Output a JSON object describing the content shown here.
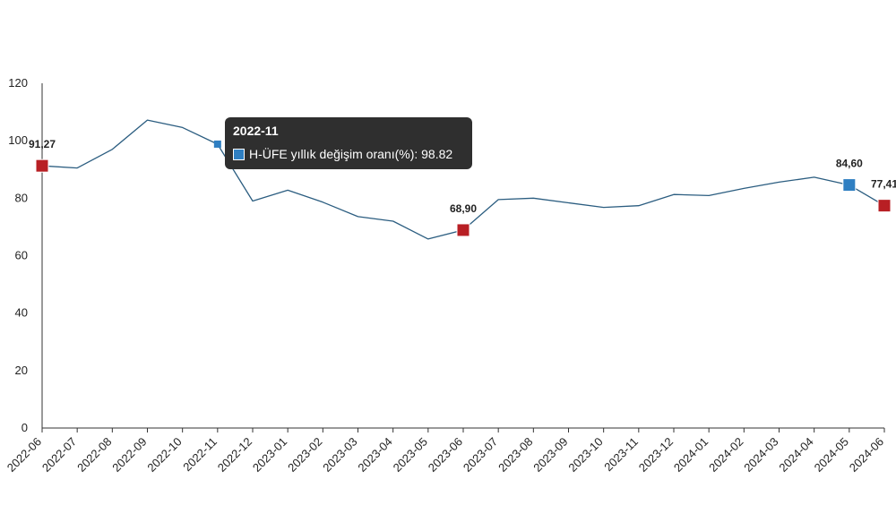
{
  "chart_data": {
    "type": "line",
    "title": "",
    "xlabel": "",
    "ylabel": "",
    "ylim": [
      0,
      120
    ],
    "yticks": [
      0,
      20,
      40,
      60,
      80,
      100,
      120
    ],
    "grid": false,
    "categories": [
      "2022-06",
      "2022-07",
      "2022-08",
      "2022-09",
      "2022-10",
      "2022-11",
      "2022-12",
      "2023-01",
      "2023-02",
      "2023-03",
      "2023-04",
      "2023-05",
      "2023-06",
      "2023-07",
      "2023-08",
      "2023-09",
      "2023-10",
      "2023-11",
      "2023-12",
      "2024-01",
      "2024-02",
      "2024-03",
      "2024-04",
      "2024-05",
      "2024-06"
    ],
    "series": [
      {
        "name": "H-ÜFE yıllık değişim oranı(%)",
        "color": "#2b5d80",
        "values": [
          91.27,
          90.5,
          97.0,
          107.2,
          104.6,
          98.82,
          79.0,
          82.8,
          78.6,
          73.6,
          72.0,
          65.8,
          68.9,
          79.5,
          80.0,
          78.4,
          76.8,
          77.4,
          81.3,
          80.9,
          83.4,
          85.6,
          87.3,
          84.6,
          77.41
        ]
      }
    ],
    "highlighted_points": [
      {
        "category": "2022-06",
        "label": "91,27",
        "color": "#b81f24"
      },
      {
        "category": "2023-06",
        "label": "68,90",
        "color": "#b81f24"
      },
      {
        "category": "2024-05",
        "label": "84,60",
        "color": "#2f7fc2"
      },
      {
        "category": "2024-06",
        "label": "77,41",
        "color": "#b81f24"
      }
    ],
    "tooltip": {
      "title": "2022-11",
      "series_label": "H-ÜFE yıllık değişim oranı(%)",
      "value": "98.82",
      "text": "H-ÜFE yıllık değişim oranı(%): 98.82",
      "swatch_color": "#2f7fc2"
    }
  }
}
